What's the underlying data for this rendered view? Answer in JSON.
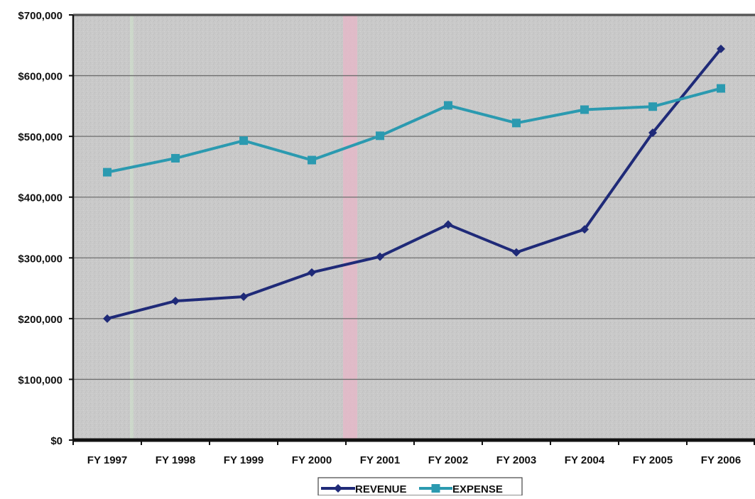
{
  "chart_data": {
    "type": "line",
    "title": "",
    "xlabel": "",
    "ylabel": "",
    "categories": [
      "FY 1997",
      "FY 1998",
      "FY 1999",
      "FY 2000",
      "FY 2001",
      "FY 2002",
      "FY 2003",
      "FY 2004",
      "FY 2005",
      "FY 2006"
    ],
    "ylim": [
      0,
      700000
    ],
    "yticks": [
      0,
      100000,
      200000,
      300000,
      400000,
      500000,
      600000,
      700000
    ],
    "ytick_labels": [
      "$0",
      "$100,000",
      "$200,000",
      "$300,000",
      "$400,000",
      "$500,000",
      "$600,000",
      "$700,000"
    ],
    "grid": true,
    "legend_position": "bottom-center",
    "series": [
      {
        "name": "REVENUE",
        "color": "#1f2a78",
        "marker": "diamond",
        "values": [
          200000,
          229000,
          236000,
          276000,
          302000,
          355000,
          309000,
          347000,
          506000,
          644000
        ]
      },
      {
        "name": "EXPENSE",
        "color": "#2b9ab0",
        "marker": "square",
        "values": [
          441000,
          464000,
          493000,
          461000,
          501000,
          551000,
          522000,
          544000,
          549000,
          579000
        ]
      }
    ]
  }
}
